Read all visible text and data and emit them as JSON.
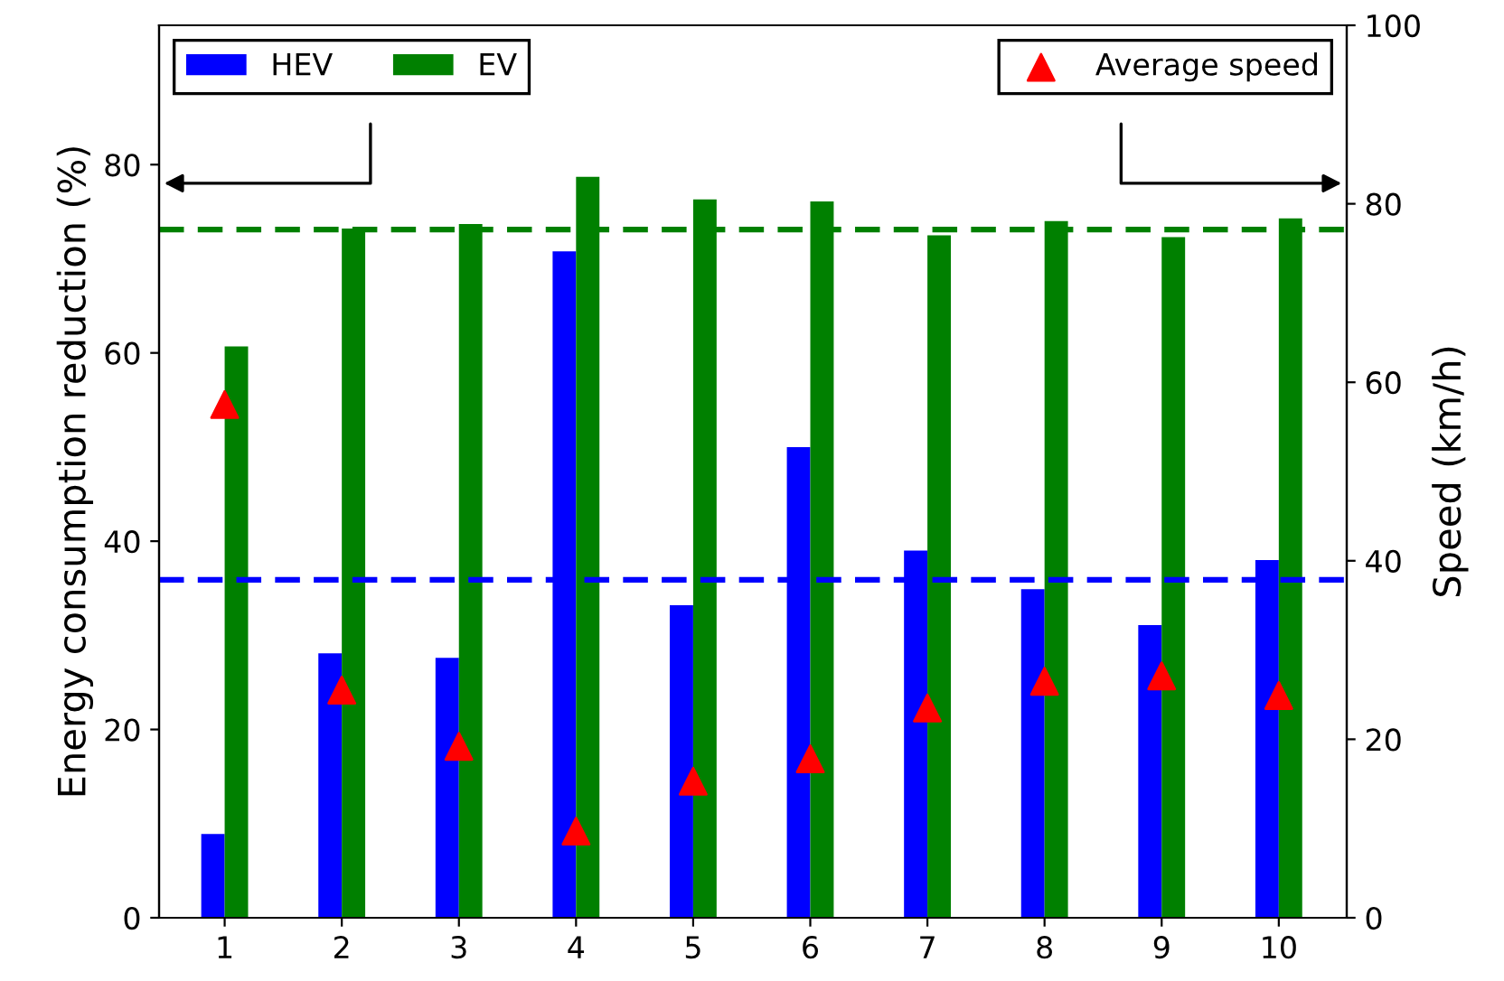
{
  "chart_data": {
    "type": "bar",
    "xlabel": null,
    "ylabel": "Energy consumption reduction (%)",
    "y2label": "Speed (km/h)",
    "categories": [
      "1",
      "2",
      "3",
      "4",
      "5",
      "6",
      "7",
      "8",
      "9",
      "10"
    ],
    "series": [
      {
        "name": "HEV",
        "color": "#0000ff",
        "values": [
          8.9,
          28.1,
          27.6,
          70.8,
          33.2,
          50.0,
          39.0,
          34.9,
          31.1,
          38.0
        ]
      },
      {
        "name": "EV",
        "color": "#008000",
        "values": [
          60.7,
          73.2,
          73.7,
          78.7,
          76.3,
          76.1,
          72.5,
          74.0,
          72.3,
          74.3
        ]
      },
      {
        "name": "Average speed",
        "type": "scatter",
        "axis": "y2",
        "color": "#ff0000",
        "marker": "triangle",
        "values": [
          57.5,
          25.5,
          19.2,
          9.7,
          15.3,
          17.8,
          23.5,
          26.5,
          27.1,
          24.9
        ]
      }
    ],
    "ref_lines": [
      {
        "axis": "y",
        "value": 73.1,
        "color": "#008000",
        "line_style": "dashed"
      },
      {
        "axis": "y",
        "value": 35.9,
        "color": "#0000ff",
        "line_style": "dashed"
      }
    ],
    "ylim": [
      0,
      94.8
    ],
    "yticks": [
      0,
      20,
      40,
      60,
      80
    ],
    "y2lim": [
      0,
      100
    ],
    "y2ticks": [
      0,
      20,
      40,
      60,
      80,
      100
    ],
    "grid": false,
    "legend": "top"
  }
}
